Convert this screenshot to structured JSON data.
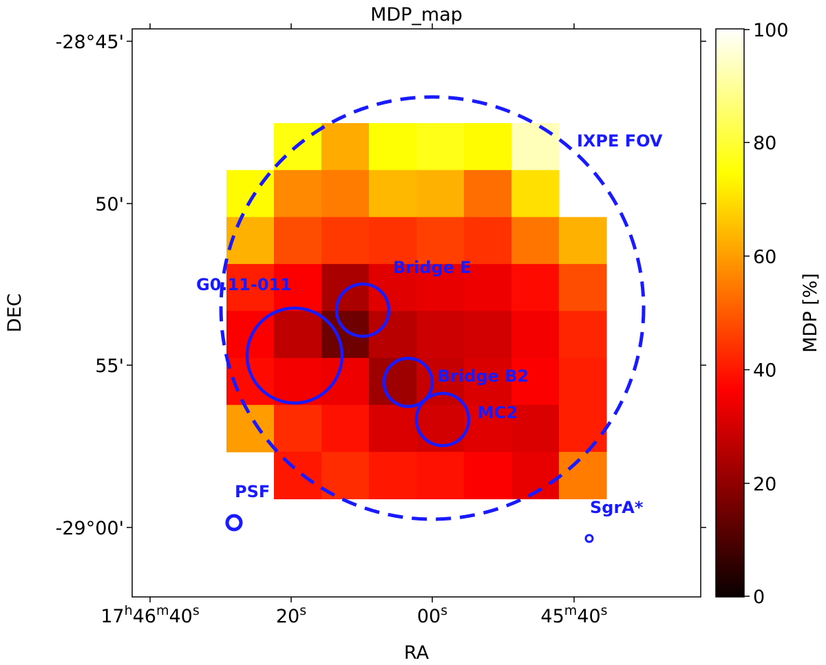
{
  "chart_data": {
    "type": "heatmap",
    "title": "MDP_map",
    "xlabel": "RA",
    "ylabel": "DEC",
    "x_ticks": [
      {
        "label": "17h46m40s"
      },
      {
        "label": "20s"
      },
      {
        "label": "00s"
      },
      {
        "label": "45m40s"
      }
    ],
    "y_ticks": [
      {
        "label": "-28°45'"
      },
      {
        "label": "50'"
      },
      {
        "label": "55'"
      },
      {
        "label": "-29°00'"
      }
    ],
    "colorbar": {
      "label": "MDP [%]",
      "range": [
        0,
        100
      ],
      "ticks": [
        0,
        20,
        40,
        60,
        80,
        100
      ],
      "colormap": "hot"
    },
    "grid": {
      "columns": 8,
      "rows": 8,
      "description": "MDP percent per pixel; row 0 = top (north), column 0 = left (east); null = no data",
      "values": [
        [
          null,
          76,
          62,
          75,
          77,
          74,
          93,
          null
        ],
        [
          74,
          57,
          55,
          64,
          63,
          53,
          70,
          null
        ],
        [
          63,
          48,
          45,
          44,
          46,
          44,
          54,
          63
        ],
        [
          41,
          36,
          24,
          32,
          33,
          34,
          38,
          48
        ],
        [
          36,
          27,
          15,
          26,
          29,
          30,
          35,
          42
        ],
        [
          38,
          35,
          34,
          22,
          28,
          31,
          36,
          41
        ],
        [
          60,
          43,
          39,
          31,
          30,
          32,
          31,
          41
        ],
        [
          null,
          40,
          43,
          40,
          39,
          36,
          33,
          55
        ]
      ]
    },
    "annotations": [
      {
        "name": "G0.11-011",
        "shape": "circle"
      },
      {
        "name": "Bridge E",
        "shape": "circle"
      },
      {
        "name": "Bridge B2",
        "shape": "circle"
      },
      {
        "name": "MC2",
        "shape": "circle"
      },
      {
        "name": "IXPE FOV",
        "shape": "dashed-circle"
      },
      {
        "name": "PSF",
        "shape": "circle"
      },
      {
        "name": "SgrA*",
        "shape": "circle"
      }
    ],
    "annotation_color": "#1a1aff"
  }
}
